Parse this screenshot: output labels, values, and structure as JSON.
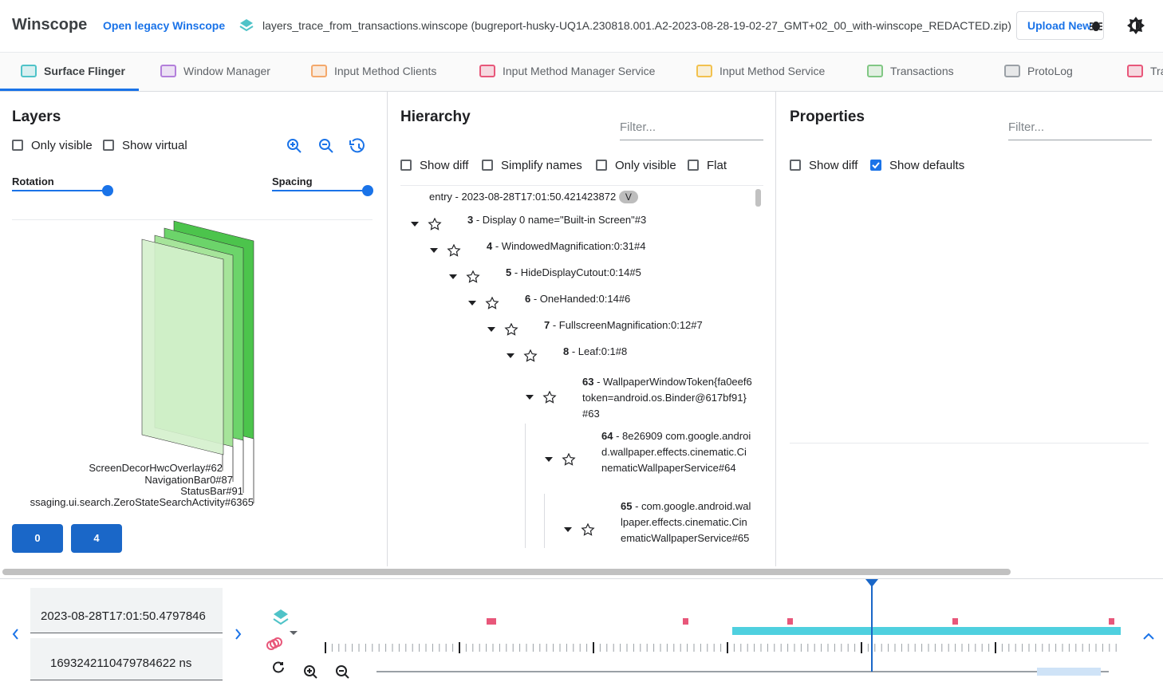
{
  "header": {
    "title": "Winscope",
    "legacy_link": "Open legacy Winscope",
    "file": "layers_trace_from_transactions.winscope (bugreport-husky-UQ1A.230818.001.A2-2023-08-28-19-02-27_GMT+02_00_with-winscope_REDACTED.zip)",
    "upload": "Upload New"
  },
  "tabs": [
    "Surface Flinger",
    "Window Manager",
    "Input Method Clients",
    "Input Method Manager Service",
    "Input Method Service",
    "Transactions",
    "ProtoLog",
    "Tra"
  ],
  "layers": {
    "title": "Layers",
    "only_visible": "Only visible",
    "show_virtual": "Show virtual",
    "rotation": "Rotation",
    "spacing": "Spacing",
    "labels": [
      "ScreenDecorHwcOverlay#62",
      "NavigationBar0#87",
      "StatusBar#91",
      "ssaging.ui.search.ZeroStateSearchActivity#6365"
    ],
    "buttons": [
      "0",
      "4"
    ]
  },
  "hierarchy": {
    "title": "Hierarchy",
    "filter": "Filter...",
    "options": [
      "Show diff",
      "Simplify names",
      "Only visible",
      "Flat"
    ],
    "root": {
      "label": "entry",
      "timestamp": "- 2023-08-28T17:01:50.421423872",
      "badge": "V"
    },
    "nodes": [
      {
        "id": "3",
        "name": "- Display 0 name=\"Built-in Screen\"#3"
      },
      {
        "id": "4",
        "name": "- WindowedMagnification:0:31#4"
      },
      {
        "id": "5",
        "name": "- HideDisplayCutout:0:14#5"
      },
      {
        "id": "6",
        "name": "- OneHanded:0:14#6"
      },
      {
        "id": "7",
        "name": "- FullscreenMagnification:0:12#7"
      },
      {
        "id": "8",
        "name": "- Leaf:0:1#8"
      },
      {
        "id": "63",
        "name": "- WallpaperWindowToken{fa0eef6 token=android.os.Binder@617bf91}#63"
      },
      {
        "id": "64",
        "name": "- 8e26909 com.google.android.wallpaper.effects.cinematic.CinematicWallpaperService#64"
      },
      {
        "id": "65",
        "name": "- com.google.android.wallpaper.effects.cinematic.CinematicWallpaperService#65"
      }
    ]
  },
  "properties": {
    "title": "Properties",
    "filter": "Filter...",
    "options": [
      "Show diff",
      "Show defaults"
    ]
  },
  "timeline": {
    "timestamp": "2023-08-28T17:01:50.4797846",
    "ns": "1693242110479784622 ns"
  }
}
